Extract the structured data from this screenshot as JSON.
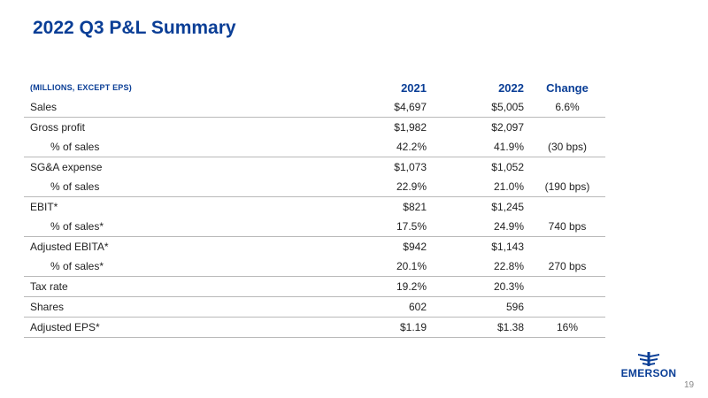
{
  "title": "2022 Q3 P&L Summary",
  "table": {
    "units_label": "(MILLIONS, EXCEPT EPS)",
    "columns": [
      "2021",
      "2022",
      "Change"
    ],
    "rows": [
      {
        "label": "Sales",
        "v2021": "$4,697",
        "v2022": "$5,005",
        "change": "6.6%"
      },
      {
        "label": "Gross profit",
        "v2021": "$1,982",
        "v2022": "$2,097",
        "change": ""
      },
      {
        "label": "% of sales",
        "v2021": "42.2%",
        "v2022": "41.9%",
        "change": "(30 bps)"
      },
      {
        "label": "SG&A expense",
        "v2021": "$1,073",
        "v2022": "$1,052",
        "change": ""
      },
      {
        "label": "% of sales",
        "v2021": "22.9%",
        "v2022": "21.0%",
        "change": "(190 bps)"
      },
      {
        "label": "EBIT*",
        "v2021": "$821",
        "v2022": "$1,245",
        "change": ""
      },
      {
        "label": "% of sales*",
        "v2021": "17.5%",
        "v2022": "24.9%",
        "change": "740 bps"
      },
      {
        "label": "Adjusted EBITA*",
        "v2021": "$942",
        "v2022": "$1,143",
        "change": ""
      },
      {
        "label": "% of sales*",
        "v2021": "20.1%",
        "v2022": "22.8%",
        "change": "270 bps"
      },
      {
        "label": "Tax rate",
        "v2021": "19.2%",
        "v2022": "20.3%",
        "change": ""
      },
      {
        "label": "Shares",
        "v2021": "602",
        "v2022": "596",
        "change": ""
      },
      {
        "label": "Adjusted EPS*",
        "v2021": "$1.19",
        "v2022": "$1.38",
        "change": "16%"
      }
    ]
  },
  "logo": {
    "text": "EMERSON",
    "icon": "emerson-logo-icon"
  },
  "page_number": "19",
  "colors": {
    "brand": "#0a3e96",
    "rule": "#b9b9b9"
  }
}
